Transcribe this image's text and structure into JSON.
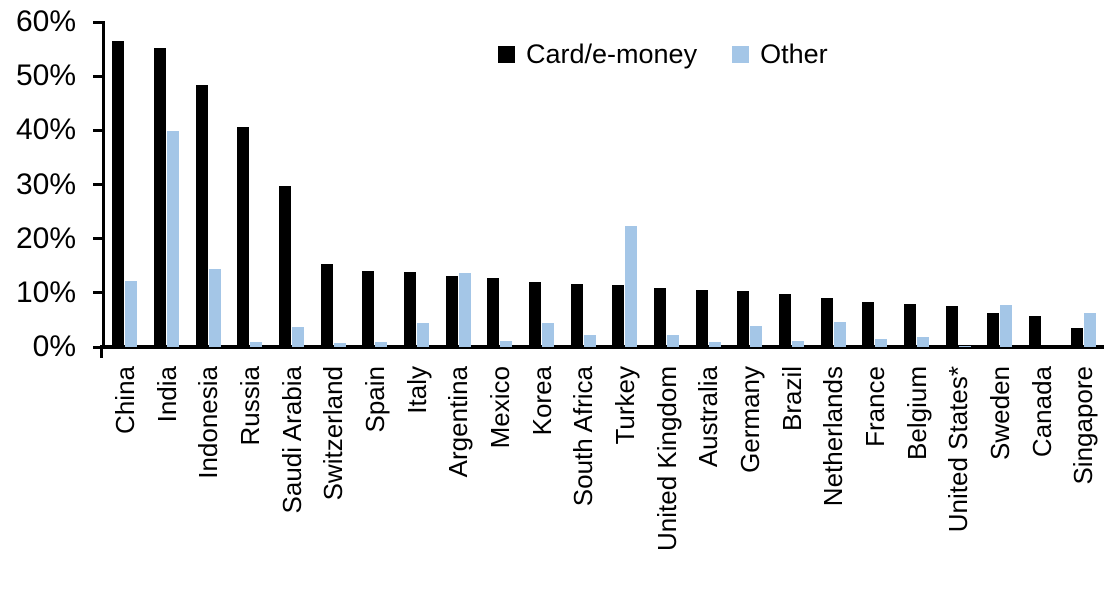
{
  "chart_data": {
    "type": "bar",
    "title": "",
    "xlabel": "",
    "ylabel": "",
    "ylim": [
      0,
      60
    ],
    "grid": false,
    "legend_position": "top-center",
    "axis_color": "#000000",
    "yticks": [
      "60%",
      "50%",
      "40%",
      "30%",
      "20%",
      "10%",
      "0%"
    ],
    "ytick_values": [
      60,
      50,
      40,
      30,
      20,
      10,
      0
    ],
    "categories": [
      "China",
      "India",
      "Indonesia",
      "Russia",
      "Saudi Arabia",
      "Switzerland",
      "Spain",
      "Italy",
      "Argentina",
      "Mexico",
      "Korea",
      "South Africa",
      "Turkey",
      "United Kingdom",
      "Australia",
      "Germany",
      "Brazil",
      "Netherlands",
      "France",
      "Belgium",
      "United States*",
      "Sweden",
      "Canada",
      "Singapore"
    ],
    "series": [
      {
        "name": "Card/e-money",
        "color": "#000000",
        "values": [
          56.5,
          55.2,
          48.4,
          40.6,
          29.8,
          15.4,
          14.1,
          13.9,
          13.2,
          12.8,
          12.0,
          11.6,
          11.5,
          10.9,
          10.6,
          10.4,
          9.8,
          9.0,
          8.4,
          7.9,
          7.6,
          6.2,
          5.7,
          3.6
        ]
      },
      {
        "name": "Other",
        "color": "#A4C6E7",
        "values": [
          12.2,
          39.8,
          14.4,
          0.9,
          3.7,
          0.7,
          0.9,
          4.4,
          13.6,
          1.2,
          4.4,
          2.2,
          22.4,
          2.3,
          1.0,
          3.9,
          1.1,
          4.6,
          1.4,
          1.8,
          0.2,
          7.8,
          0,
          6.3
        ]
      }
    ]
  }
}
